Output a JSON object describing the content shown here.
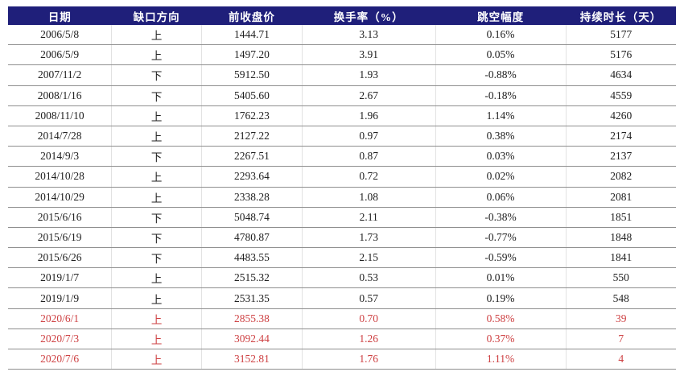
{
  "colors": {
    "header_bg": "#1F1F7A",
    "header_text": "#FFFFFF",
    "body_text": "#212121",
    "highlight_text": "#CE4143",
    "row_border": "#8F8F8F",
    "col_border": "#E2E2E2"
  },
  "chart_data": {
    "type": "table",
    "columns": [
      "日期",
      "缺口方向",
      "前收盘价",
      "换手率（%）",
      "跳空幅度",
      "持续时长（天）"
    ],
    "column_keys": [
      "date",
      "direction",
      "prev_close",
      "turnover",
      "gap_pct",
      "duration"
    ],
    "highlight_note": "last three rows rendered in red",
    "rows": [
      {
        "date": "2006/5/8",
        "direction": "上",
        "prev_close": "1444.71",
        "turnover": "3.13",
        "gap_pct": "0.16%",
        "duration": "5177",
        "highlight": false
      },
      {
        "date": "2006/5/9",
        "direction": "上",
        "prev_close": "1497.20",
        "turnover": "3.91",
        "gap_pct": "0.05%",
        "duration": "5176",
        "highlight": false
      },
      {
        "date": "2007/11/2",
        "direction": "下",
        "prev_close": "5912.50",
        "turnover": "1.93",
        "gap_pct": "-0.88%",
        "duration": "4634",
        "highlight": false
      },
      {
        "date": "2008/1/16",
        "direction": "下",
        "prev_close": "5405.60",
        "turnover": "2.67",
        "gap_pct": "-0.18%",
        "duration": "4559",
        "highlight": false
      },
      {
        "date": "2008/11/10",
        "direction": "上",
        "prev_close": "1762.23",
        "turnover": "1.96",
        "gap_pct": "1.14%",
        "duration": "4260",
        "highlight": false
      },
      {
        "date": "2014/7/28",
        "direction": "上",
        "prev_close": "2127.22",
        "turnover": "0.97",
        "gap_pct": "0.38%",
        "duration": "2174",
        "highlight": false
      },
      {
        "date": "2014/9/3",
        "direction": "下",
        "prev_close": "2267.51",
        "turnover": "0.87",
        "gap_pct": "0.03%",
        "duration": "2137",
        "highlight": false
      },
      {
        "date": "2014/10/28",
        "direction": "上",
        "prev_close": "2293.64",
        "turnover": "0.72",
        "gap_pct": "0.02%",
        "duration": "2082",
        "highlight": false
      },
      {
        "date": "2014/10/29",
        "direction": "上",
        "prev_close": "2338.28",
        "turnover": "1.08",
        "gap_pct": "0.06%",
        "duration": "2081",
        "highlight": false
      },
      {
        "date": "2015/6/16",
        "direction": "下",
        "prev_close": "5048.74",
        "turnover": "2.11",
        "gap_pct": "-0.38%",
        "duration": "1851",
        "highlight": false
      },
      {
        "date": "2015/6/19",
        "direction": "下",
        "prev_close": "4780.87",
        "turnover": "1.73",
        "gap_pct": "-0.77%",
        "duration": "1848",
        "highlight": false
      },
      {
        "date": "2015/6/26",
        "direction": "下",
        "prev_close": "4483.55",
        "turnover": "2.15",
        "gap_pct": "-0.59%",
        "duration": "1841",
        "highlight": false
      },
      {
        "date": "2019/1/7",
        "direction": "上",
        "prev_close": "2515.32",
        "turnover": "0.53",
        "gap_pct": "0.01%",
        "duration": "550",
        "highlight": false
      },
      {
        "date": "2019/1/9",
        "direction": "上",
        "prev_close": "2531.35",
        "turnover": "0.57",
        "gap_pct": "0.19%",
        "duration": "548",
        "highlight": false
      },
      {
        "date": "2020/6/1",
        "direction": "上",
        "prev_close": "2855.38",
        "turnover": "0.70",
        "gap_pct": "0.58%",
        "duration": "39",
        "highlight": true
      },
      {
        "date": "2020/7/3",
        "direction": "上",
        "prev_close": "3092.44",
        "turnover": "1.26",
        "gap_pct": "0.37%",
        "duration": "7",
        "highlight": true
      },
      {
        "date": "2020/7/6",
        "direction": "上",
        "prev_close": "3152.81",
        "turnover": "1.76",
        "gap_pct": "1.11%",
        "duration": "4",
        "highlight": true
      }
    ]
  }
}
